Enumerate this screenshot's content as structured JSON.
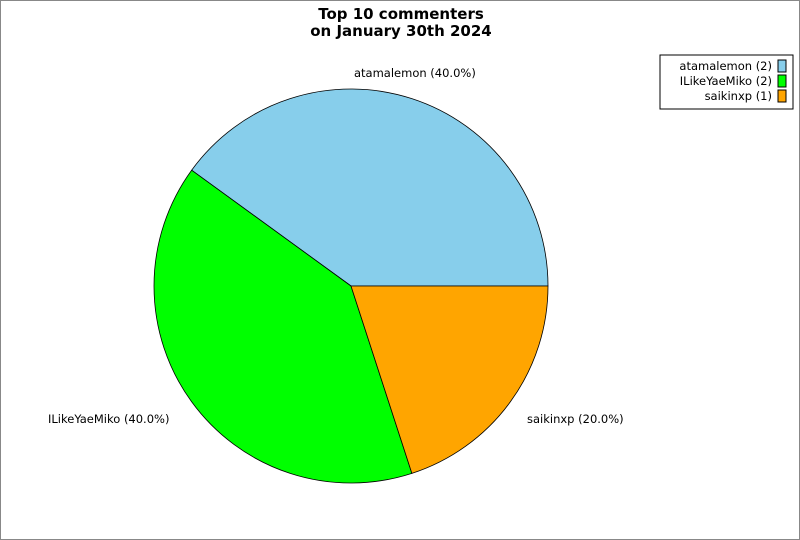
{
  "chart_data": {
    "type": "pie",
    "title_lines": [
      "Top 10 commenters",
      "on January 30th 2024"
    ],
    "slices": [
      {
        "name": "atamalemon",
        "value": 2,
        "percent": 40.0,
        "label": "atamalemon (40.0%)",
        "legend": "atamalemon (2)",
        "color": "#87CEEB"
      },
      {
        "name": "ILikeYaeMiko",
        "value": 2,
        "percent": 40.0,
        "label": "ILikeYaeMiko (40.0%)",
        "legend": "ILikeYaeMiko (2)",
        "color": "#00FF00"
      },
      {
        "name": "saikinxp",
        "value": 1,
        "percent": 20.0,
        "label": "saikinxp (20.0%)",
        "legend": "saikinxp (1)",
        "color": "#FFA500"
      }
    ],
    "legend_position": "top-right"
  }
}
